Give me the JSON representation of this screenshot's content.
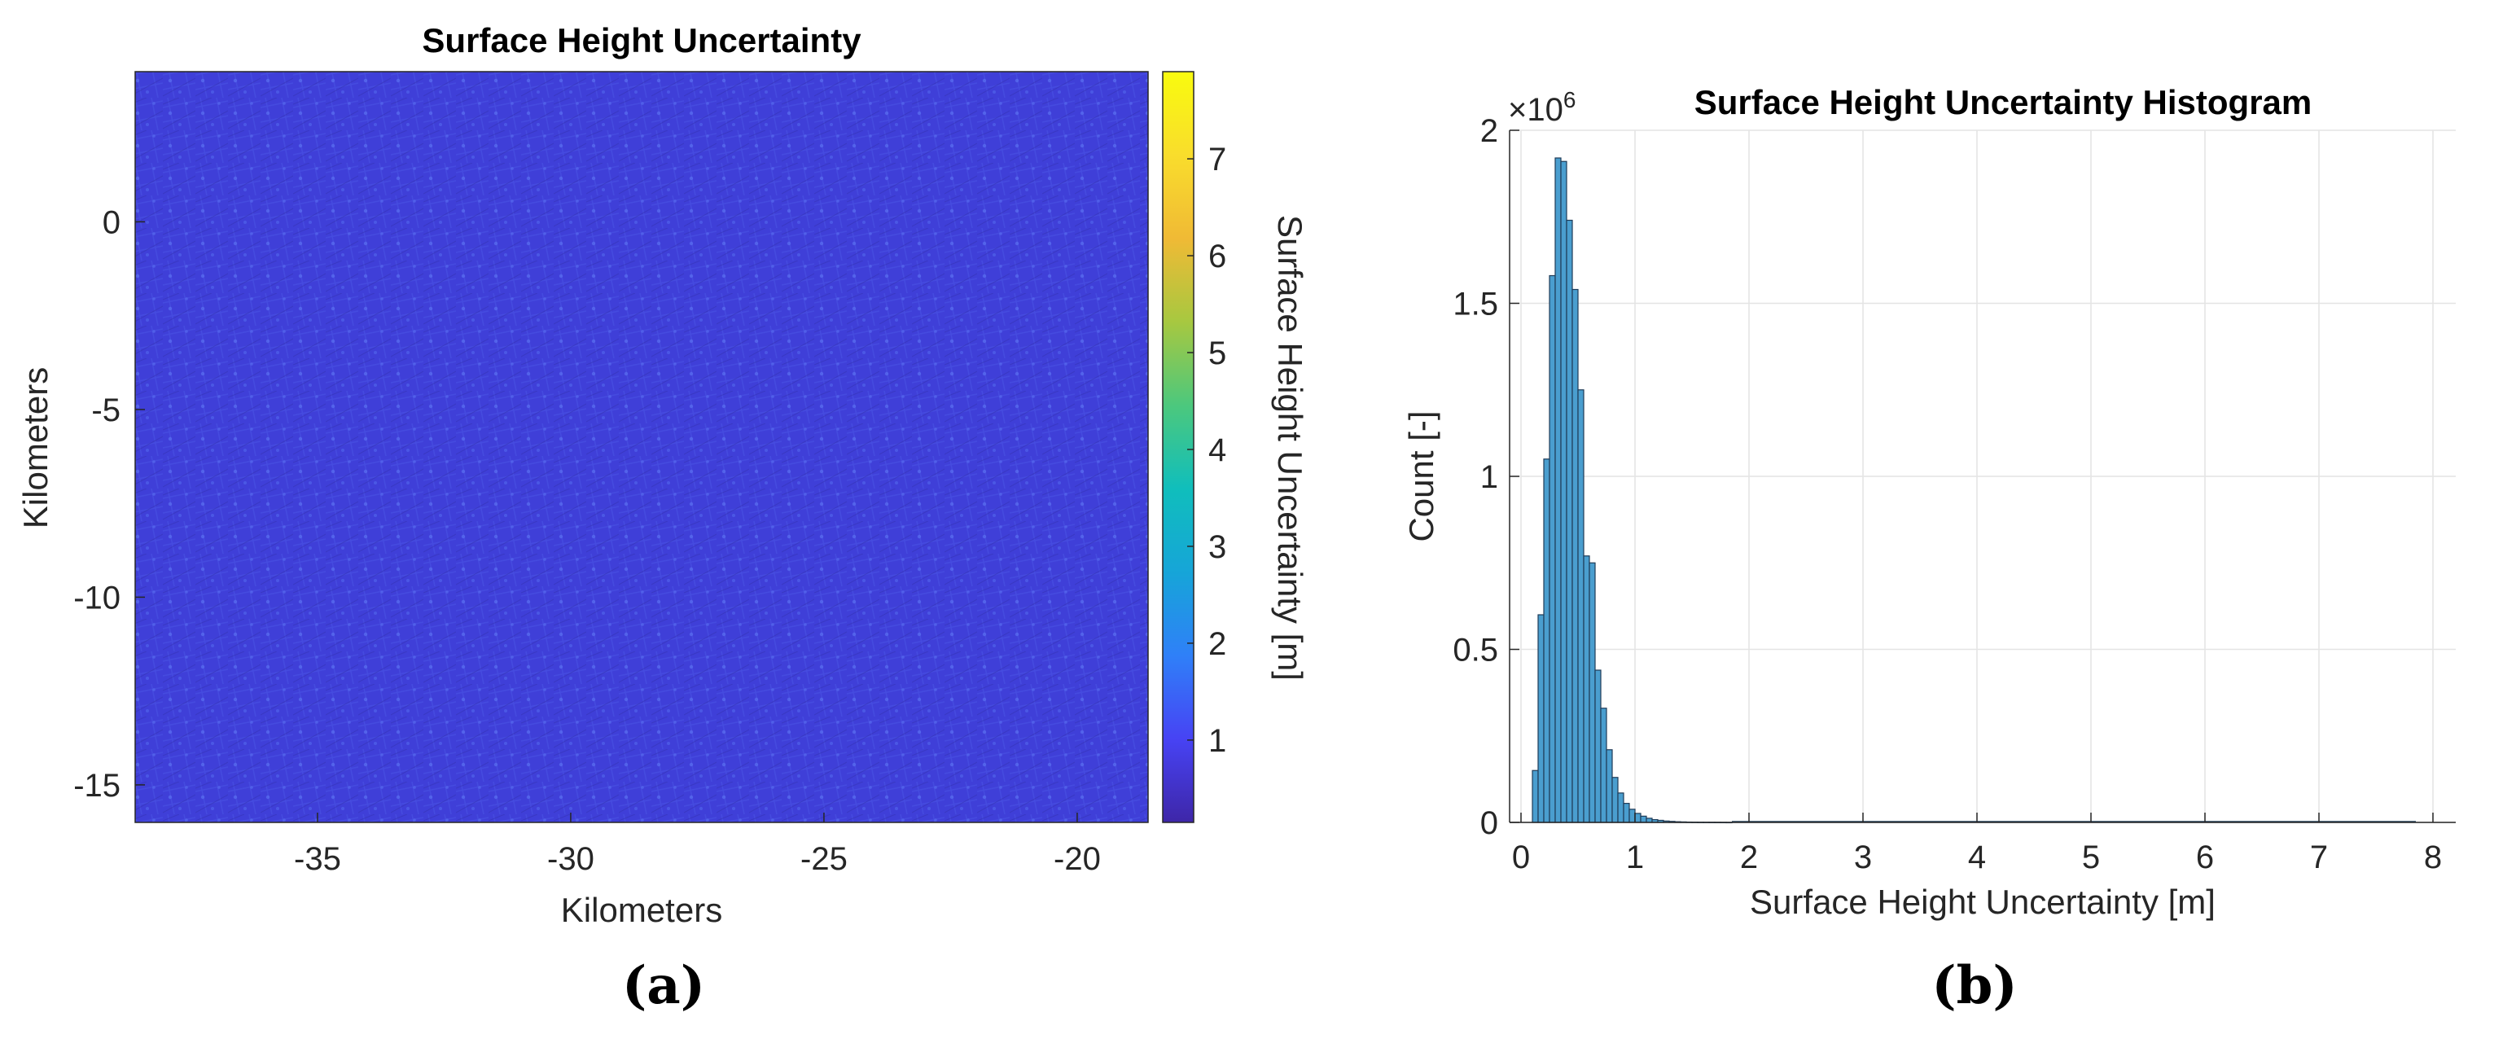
{
  "chart_data": [
    {
      "type": "heatmap",
      "panel_label": "(a)",
      "title": "Surface Height Uncertainty",
      "xlabel": "Kilometers",
      "ylabel": "Kilometers",
      "xlim": [
        -38.6,
        -18.6
      ],
      "ylim": [
        -16.0,
        4.0
      ],
      "xticks": [
        -35,
        -30,
        -25,
        -20
      ],
      "xtick_labels": [
        "-35",
        "-30",
        "-25",
        "-20"
      ],
      "yticks": [
        0,
        -5,
        -10,
        -15
      ],
      "ytick_labels": [
        "0",
        "-5",
        "-10",
        "-15"
      ],
      "dominant_value": 0.5,
      "colorbar": {
        "label": "Surface Height Uncertainty [m]",
        "range": [
          0.15,
          7.9
        ],
        "ticks": [
          1,
          2,
          3,
          4,
          5,
          6,
          7
        ],
        "tick_labels": [
          "1",
          "2",
          "3",
          "4",
          "5",
          "6",
          "7"
        ],
        "colormap": "parula",
        "colormap_stops": [
          "#3e26a8",
          "#4743f4",
          "#2f80f8",
          "#16a5d8",
          "#10bebc",
          "#4cc87d",
          "#a7c840",
          "#f0ba35",
          "#f9dd2c",
          "#f9fb0e"
        ]
      }
    },
    {
      "type": "bar",
      "panel_label": "(b)",
      "title": "Surface Height Uncertainty Histogram",
      "xlabel": "Surface Height Uncertainty [m]",
      "ylabel": "Count [-]",
      "exponent_label": "×10",
      "exponent_power": "6",
      "bar_color": "#4a9ecf",
      "bin_width": 0.05,
      "xlim": [
        -0.1,
        8.2
      ],
      "ylim": [
        0,
        2.0
      ],
      "xticks": [
        0,
        1,
        2,
        3,
        4,
        5,
        6,
        7,
        8
      ],
      "xtick_labels": [
        "0",
        "1",
        "2",
        "3",
        "4",
        "5",
        "6",
        "7",
        "8"
      ],
      "yticks": [
        0,
        0.5,
        1,
        1.5,
        2
      ],
      "ytick_labels": [
        "0",
        "0.5",
        "1",
        "1.5",
        "2"
      ],
      "bins_start": [
        0.1,
        0.15,
        0.2,
        0.25,
        0.3,
        0.35,
        0.4,
        0.45,
        0.5,
        0.55,
        0.6,
        0.65,
        0.7,
        0.75,
        0.8,
        0.85,
        0.9,
        0.95,
        1.0,
        1.05,
        1.1,
        1.15,
        1.2,
        1.25,
        1.3,
        1.35,
        1.4,
        1.45,
        1.5,
        1.55,
        1.6,
        1.65,
        1.7,
        1.75,
        1.8
      ],
      "counts_millions": [
        0.15,
        0.6,
        1.05,
        1.58,
        1.92,
        1.91,
        1.74,
        1.54,
        1.25,
        0.77,
        0.75,
        0.44,
        0.33,
        0.21,
        0.13,
        0.085,
        0.055,
        0.038,
        0.026,
        0.018,
        0.012,
        0.008,
        0.006,
        0.004,
        0.003,
        0.002,
        0.0015,
        0.001,
        0.0008,
        0.0006,
        0.0005,
        0.0004,
        0.0003,
        0.0002,
        0.0001
      ]
    }
  ]
}
